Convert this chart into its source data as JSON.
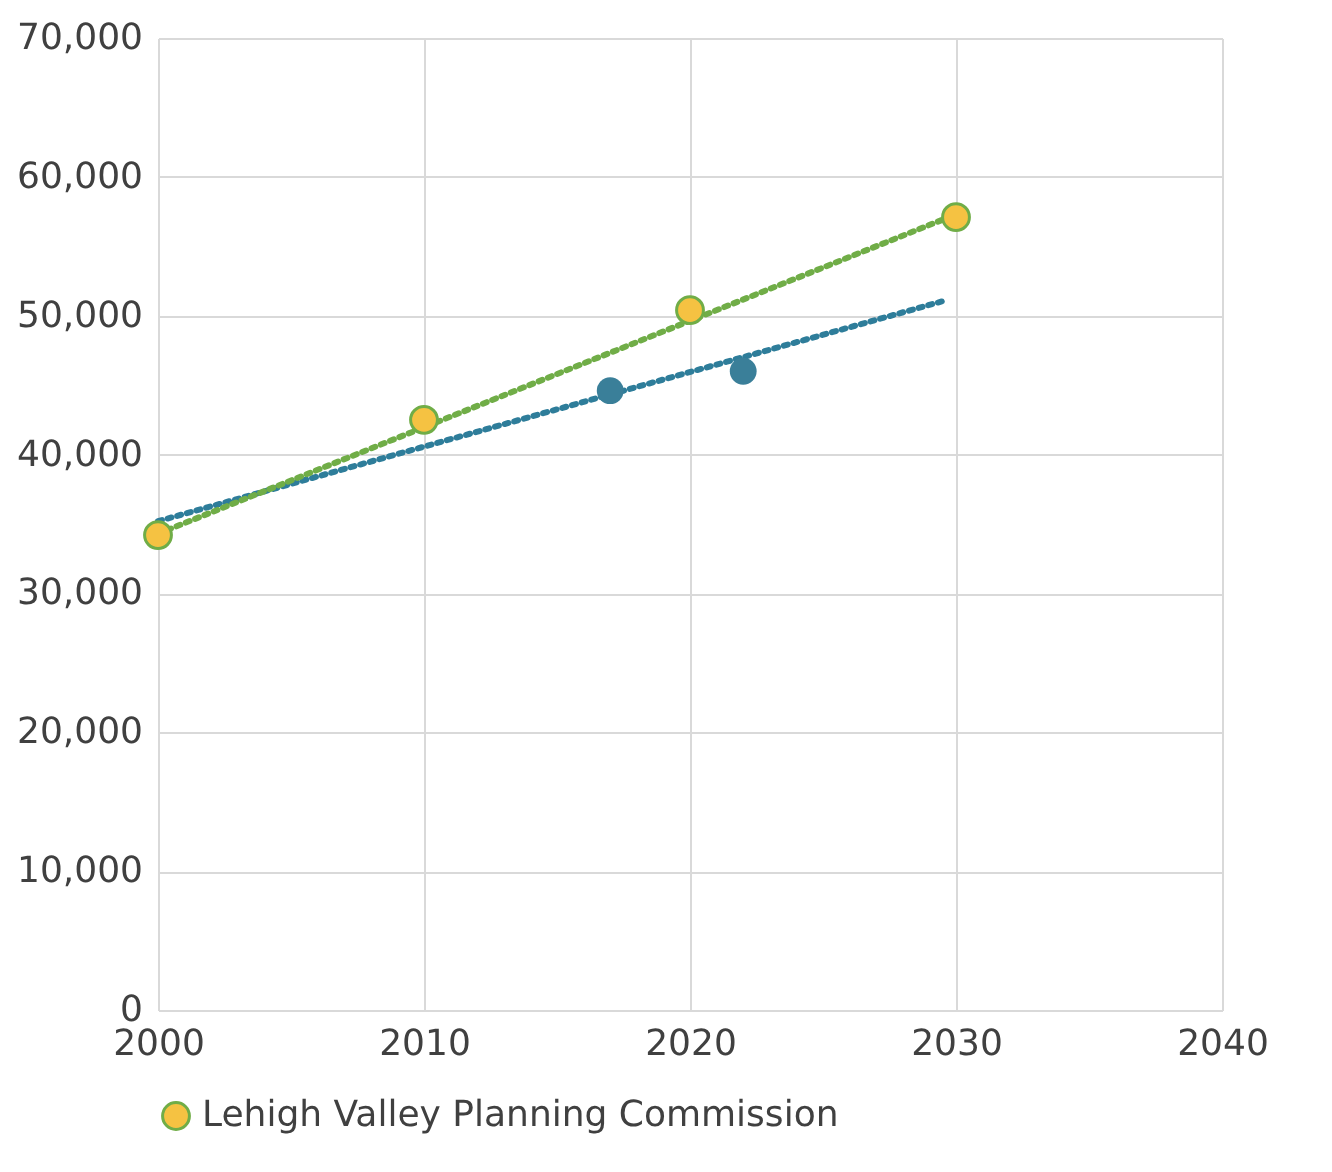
{
  "chart_data": {
    "type": "scatter",
    "marker": "circle",
    "xlim": [
      2000,
      2040
    ],
    "xticks": [
      2000,
      2010,
      2020,
      2030,
      2040
    ],
    "ylim": [
      0,
      70000
    ],
    "yticks": [
      0,
      {
        "value": 10000,
        "label": "10,000"
      },
      {
        "value": 20000,
        "label": "20,000"
      },
      {
        "value": 30000,
        "label": "30,000"
      },
      {
        "value": 40000,
        "label": "40,000"
      },
      {
        "value": 50000,
        "label": "50,000"
      },
      {
        "value": 60000,
        "label": "60,000"
      },
      {
        "value": 70000,
        "label": "70,000"
      }
    ],
    "grid": true,
    "legend": "bottom",
    "series": [
      {
        "type": "line",
        "color": "#2e7d9a",
        "line_style": "dotted",
        "marker": "none",
        "x": [
          2000,
          2029.6
        ],
        "values": [
          35200,
          51100
        ]
      },
      {
        "type": "line",
        "color": "#70ad47",
        "line_style": "dotted",
        "marker": "none",
        "x": [
          2000,
          2030
        ],
        "values": [
          34300,
          57300
        ]
      },
      {
        "color": "#3a7f99",
        "x": [
          2017,
          2022
        ],
        "values": [
          44600,
          46000
        ]
      },
      {
        "name": "Lehigh Valley Planning Commission",
        "color": "#f5c242",
        "x": [
          2000,
          2010,
          2020,
          2030
        ],
        "values": [
          34200,
          42500,
          50400,
          57100
        ]
      }
    ]
  }
}
